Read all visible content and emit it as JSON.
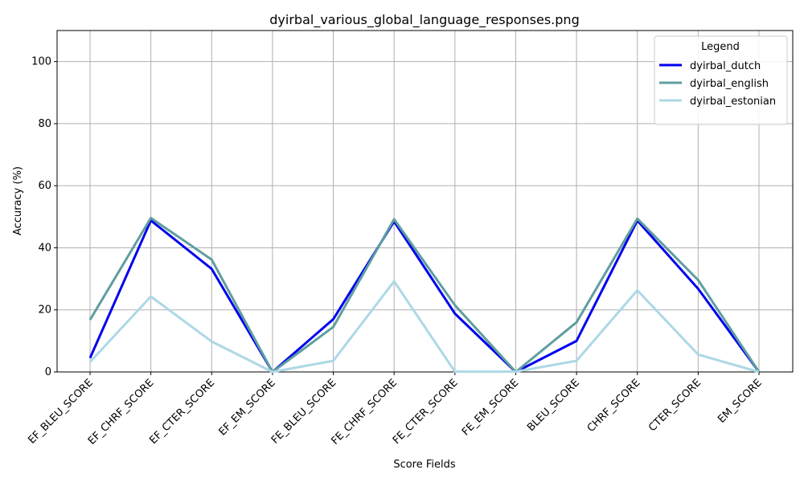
{
  "chart_data": {
    "type": "line",
    "title": "dyirbal_various_global_language_responses.png",
    "xlabel": "Score Fields",
    "ylabel": "Accuracy (%)",
    "ylim": [
      0,
      110
    ],
    "yticks": [
      0,
      20,
      40,
      60,
      80,
      100
    ],
    "grid": true,
    "legend": {
      "title": "Legend",
      "placement": "top-right"
    },
    "categories": [
      "EF_BLEU_SCORE",
      "EF_CHRF_SCORE",
      "EF_CTER_SCORE",
      "EF_EM_SCORE",
      "FE_BLEU_SCORE",
      "FE_CHRF_SCORE",
      "FE_CTER_SCORE",
      "FE_EM_SCORE",
      "BLEU_SCORE",
      "CHRF_SCORE",
      "CTER_SCORE",
      "EM_SCORE"
    ],
    "series": [
      {
        "name": "dyirbal_dutch",
        "color": "#0000ee",
        "values": [
          4.5,
          48.8,
          33.2,
          0.0,
          17.0,
          48.5,
          18.8,
          0.0,
          10.0,
          48.8,
          26.8,
          0.0
        ]
      },
      {
        "name": "dyirbal_english",
        "color": "#5f9ea0",
        "values": [
          16.8,
          49.6,
          36.2,
          0.0,
          14.5,
          49.2,
          21.5,
          0.0,
          16.0,
          49.4,
          29.6,
          0.0
        ]
      },
      {
        "name": "dyirbal_estonian",
        "color": "#add8e6",
        "values": [
          3.2,
          24.3,
          9.8,
          0.0,
          3.6,
          29.2,
          0.1,
          0.1,
          3.6,
          26.3,
          5.6,
          0.0
        ]
      }
    ]
  }
}
